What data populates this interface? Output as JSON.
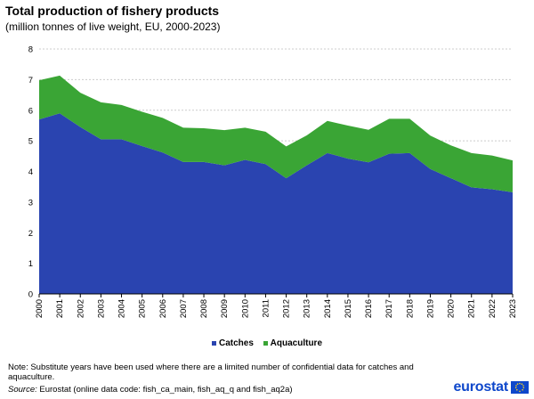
{
  "header": {
    "title": "Total production of fishery products",
    "subtitle": "(million tonnes of live weight, EU, 2000-2023)"
  },
  "chart_data": {
    "type": "area",
    "stacked": true,
    "title": "Total production of fishery products",
    "subtitle": "(million tonnes of live weight, EU, 2000-2023)",
    "x": [
      "2000",
      "2001",
      "2002",
      "2003",
      "2004",
      "2005",
      "2006",
      "2007",
      "2008",
      "2009",
      "2010",
      "2011",
      "2012",
      "2013",
      "2014",
      "2015",
      "2016",
      "2017",
      "2018",
      "2019",
      "2020",
      "2021",
      "2022",
      "2023"
    ],
    "series": [
      {
        "name": "Catches",
        "color": "#2a44b0",
        "values": [
          5.7,
          5.9,
          5.45,
          5.05,
          5.05,
          4.83,
          4.62,
          4.31,
          4.31,
          4.2,
          4.38,
          4.24,
          3.78,
          4.2,
          4.6,
          4.42,
          4.3,
          4.58,
          4.6,
          4.08,
          3.78,
          3.48,
          3.42,
          3.32
        ]
      },
      {
        "name": "Aquaculture",
        "color": "#3aa535",
        "values": [
          1.28,
          1.23,
          1.12,
          1.21,
          1.12,
          1.12,
          1.13,
          1.12,
          1.1,
          1.15,
          1.05,
          1.06,
          1.04,
          0.98,
          1.05,
          1.08,
          1.06,
          1.14,
          1.12,
          1.09,
          1.07,
          1.12,
          1.1,
          1.04
        ]
      }
    ],
    "ylim": [
      0,
      8
    ],
    "yticks": [
      "0",
      "1",
      "2",
      "3",
      "4",
      "5",
      "6",
      "7",
      "8"
    ],
    "grid": true,
    "legend_position": "bottom"
  },
  "legend": {
    "catches": "Catches",
    "aquaculture": "Aquaculture"
  },
  "footer": {
    "note": "Note: Substitute years have been used where there are a limited number of confidential data for catches and aquaculture.",
    "source_label": "Source:",
    "source_text": "Eurostat (online data code: fish_ca_main, fish_aq_q and fish_aq2a)",
    "brand": "eurostat"
  },
  "colors": {
    "catches": "#2a44b0",
    "aquaculture": "#3aa535",
    "grid": "#cccccc",
    "brand": "#0e47cb"
  }
}
